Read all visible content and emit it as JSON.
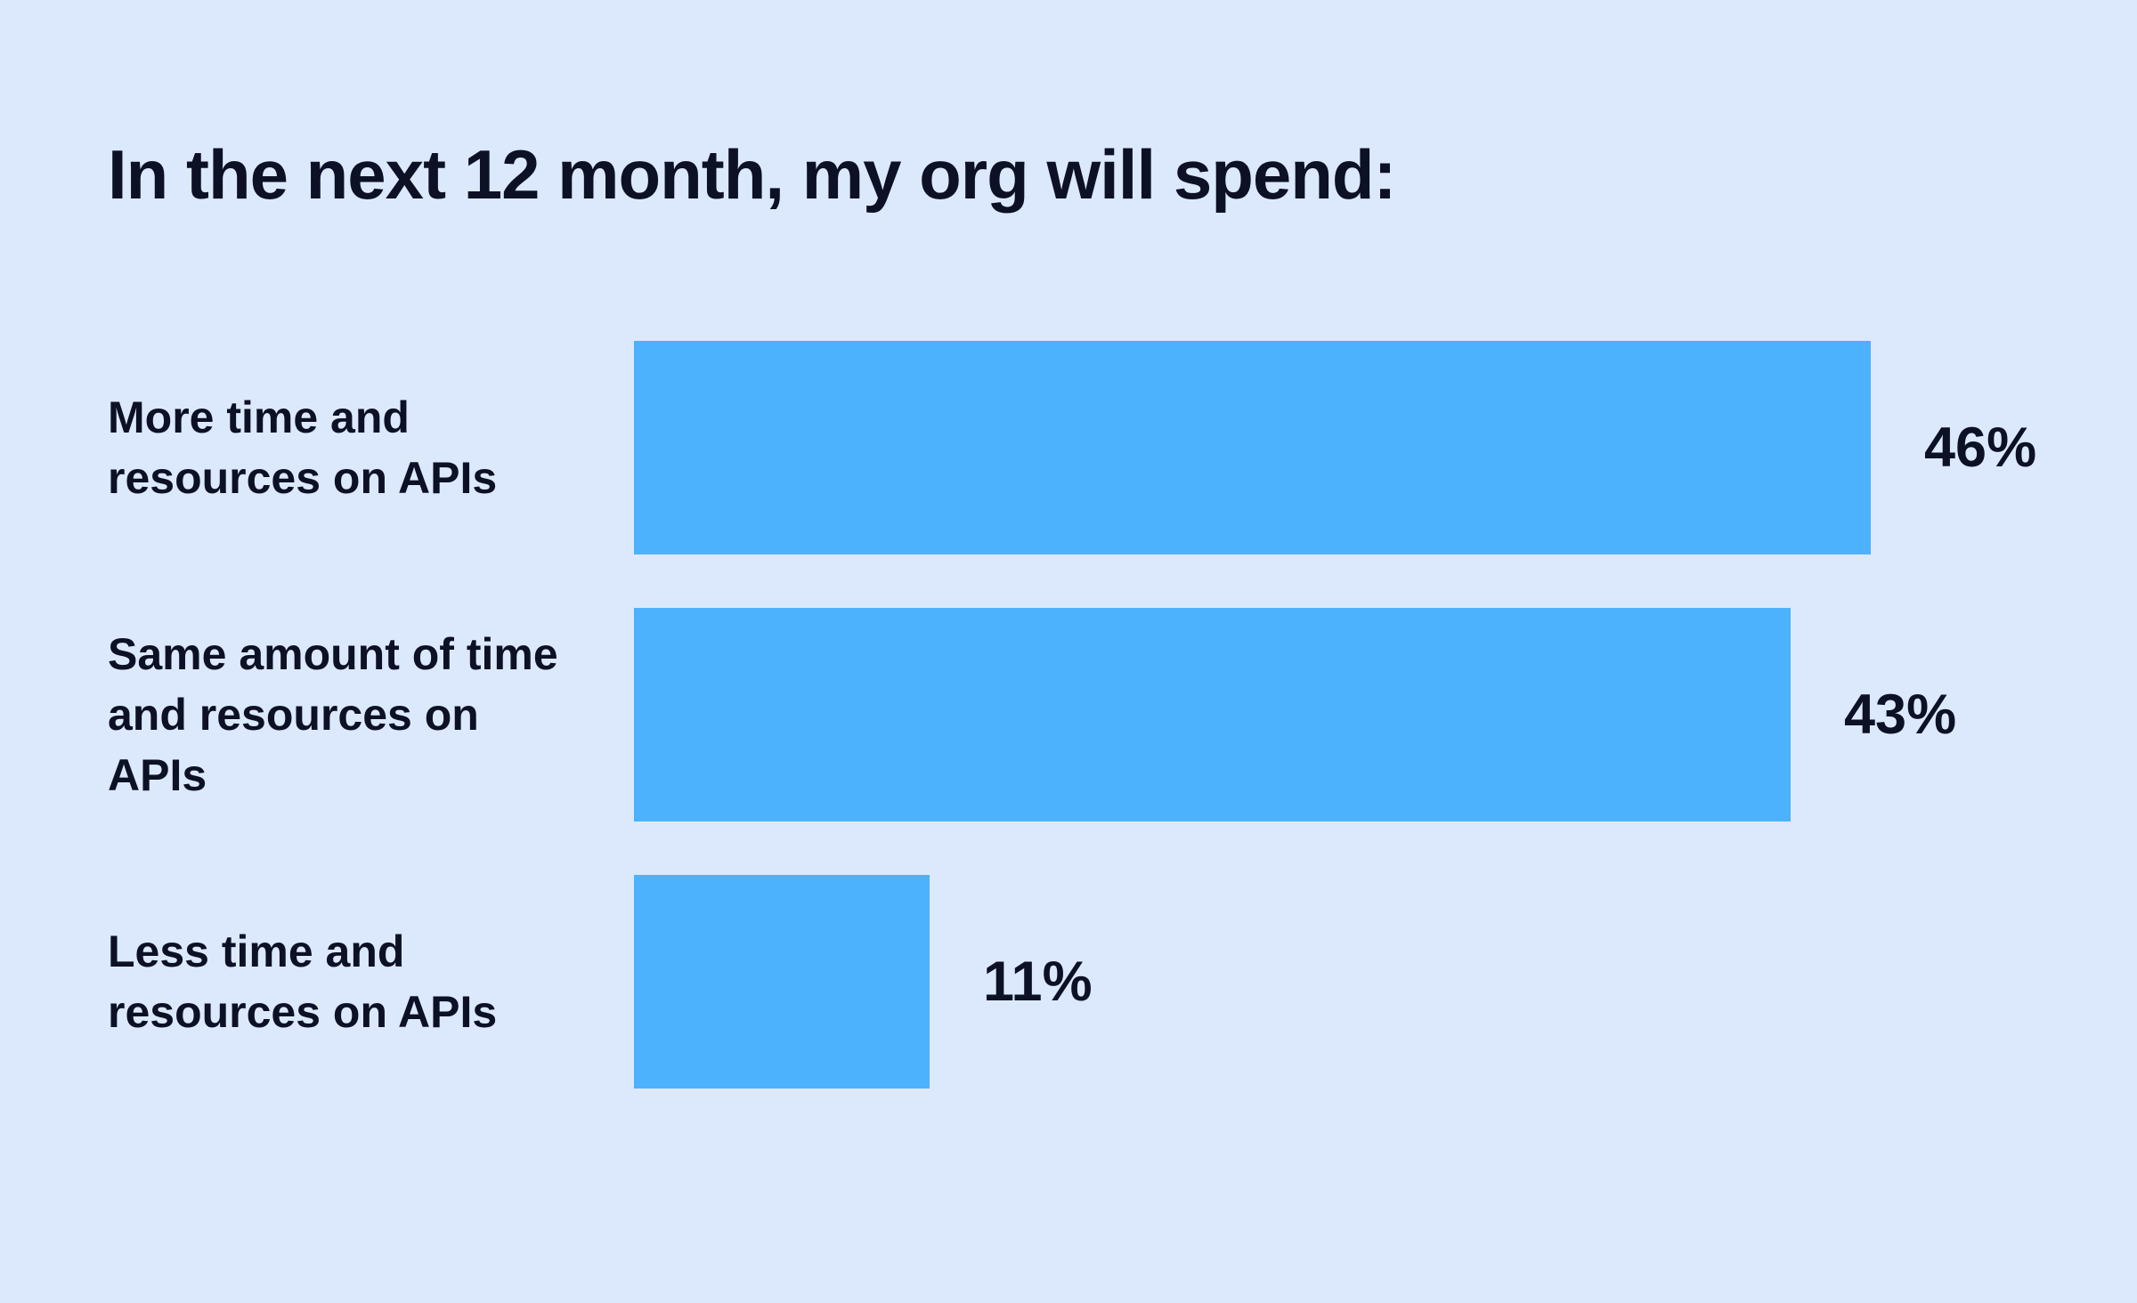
{
  "page": {
    "background_color": "#dce9fc",
    "text_color": "#0d1126"
  },
  "chart_data": {
    "type": "bar",
    "orientation": "horizontal",
    "title": "In the next 12 month, my org will spend:",
    "bar_color": "#4cb2fd",
    "categories": [
      "More time and resources on APIs",
      "Same amount of time and resources on APIs",
      "Less time and resources on APIs"
    ],
    "values": [
      46,
      43,
      11
    ],
    "value_labels": [
      "46%",
      "43%",
      "11%"
    ],
    "label_lines": [
      [
        "More time and",
        "resources on APIs"
      ],
      [
        "Same amount of time",
        "and resources on",
        "APIs"
      ],
      [
        "Less time and",
        "resources on APIs"
      ]
    ],
    "xlim": [
      0,
      46
    ],
    "xlabel": "",
    "ylabel": "",
    "grid": false,
    "legend": false,
    "axes_shown": false,
    "value_label_position": "right-of-bar"
  }
}
